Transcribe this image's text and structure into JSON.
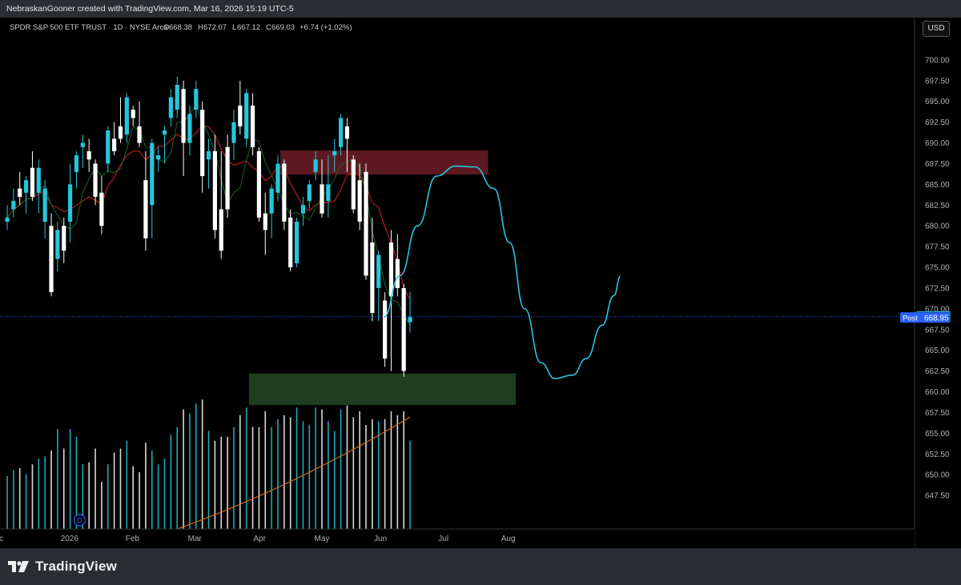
{
  "attribution": "NebraskanGooner created with TradingView.com, Mar 16, 2026 15:19 UTC-5",
  "brand": {
    "name": "TradingView"
  },
  "currency_button": "USD",
  "legend": {
    "symbol": "SPDR S&P 500 ETF TRUST · 1D · NYSE Arca",
    "open": "668.38",
    "high": "672.07",
    "low": "667.12",
    "close": "669.03",
    "change": "+6.74 (+1.02%)"
  },
  "price_label": {
    "last": "669.03",
    "post_tag": "Post",
    "post_value": "668.95"
  },
  "event_marker": "D",
  "colors": {
    "up": "#26c6da",
    "down": "#ffffff",
    "background": "#000000",
    "resistance_zone": "#5c1a20",
    "support_zone": "#1e3d21",
    "projection": "#29c5e6",
    "volume_ma": "#d2691e",
    "price_line": "#2962ff",
    "ma_red": "#b71c1c",
    "ma_green": "#1b5e20"
  },
  "chart_data": {
    "type": "candlestick",
    "symbol": "SPY",
    "interval": "1D",
    "ylim": [
      645.25,
      702.25
    ],
    "y_ticks": [
      "700.00",
      "697.50",
      "695.00",
      "692.50",
      "690.00",
      "687.50",
      "685.00",
      "682.50",
      "680.00",
      "677.50",
      "675.00",
      "672.50",
      "670.00",
      "667.50",
      "665.00",
      "662.50",
      "660.00",
      "657.50",
      "655.00",
      "652.50",
      "650.00",
      "647.50"
    ],
    "x_tick_labels": [
      {
        "label": "ec",
        "bar": -1.3
      },
      {
        "label": "2026",
        "bar": 9.9
      },
      {
        "label": "Feb",
        "bar": 19.9
      },
      {
        "label": "Mar",
        "bar": 29.8
      },
      {
        "label": "Apr",
        "bar": 40.1
      },
      {
        "label": "May",
        "bar": 50.0
      },
      {
        "label": "Jun",
        "bar": 59.3
      },
      {
        "label": "Jul",
        "bar": 69.3
      },
      {
        "label": "Aug",
        "bar": 79.6
      }
    ],
    "bar_spacing_note": "one bar per trading day",
    "candles": [
      {
        "o": 680.5,
        "h": 682.5,
        "l": 679.5,
        "c": 681.0
      },
      {
        "o": 682.0,
        "h": 684.5,
        "l": 681.0,
        "c": 683.0
      },
      {
        "o": 684.5,
        "h": 686.5,
        "l": 682.5,
        "c": 683.5
      },
      {
        "o": 684.0,
        "h": 686.0,
        "l": 681.5,
        "c": 685.5
      },
      {
        "o": 687.0,
        "h": 689.0,
        "l": 683.0,
        "c": 683.5
      },
      {
        "o": 684.0,
        "h": 688.0,
        "l": 681.5,
        "c": 687.0
      },
      {
        "o": 680.5,
        "h": 685.5,
        "l": 678.5,
        "c": 684.5
      },
      {
        "o": 680.0,
        "h": 681.5,
        "l": 671.5,
        "c": 672.0
      },
      {
        "o": 676.0,
        "h": 680.5,
        "l": 674.5,
        "c": 679.5
      },
      {
        "o": 680.0,
        "h": 681.0,
        "l": 675.5,
        "c": 677.0
      },
      {
        "o": 680.5,
        "h": 687.5,
        "l": 678.0,
        "c": 685.0
      },
      {
        "o": 686.5,
        "h": 689.0,
        "l": 684.5,
        "c": 688.5
      },
      {
        "o": 689.5,
        "h": 691.0,
        "l": 687.0,
        "c": 690.0
      },
      {
        "o": 689.0,
        "h": 690.5,
        "l": 686.5,
        "c": 688.0
      },
      {
        "o": 687.5,
        "h": 688.0,
        "l": 682.5,
        "c": 683.5
      },
      {
        "o": 684.0,
        "h": 686.0,
        "l": 679.0,
        "c": 680.0
      },
      {
        "o": 687.5,
        "h": 692.0,
        "l": 686.5,
        "c": 691.5
      },
      {
        "o": 690.5,
        "h": 692.5,
        "l": 688.5,
        "c": 689.0
      },
      {
        "o": 692.0,
        "h": 695.5,
        "l": 690.0,
        "c": 690.5
      },
      {
        "o": 691.0,
        "h": 696.0,
        "l": 690.0,
        "c": 695.5
      },
      {
        "o": 694.0,
        "h": 694.5,
        "l": 692.0,
        "c": 693.0
      },
      {
        "o": 692.0,
        "h": 695.0,
        "l": 689.5,
        "c": 690.0
      },
      {
        "o": 685.5,
        "h": 689.0,
        "l": 677.0,
        "c": 678.5
      },
      {
        "o": 682.5,
        "h": 690.5,
        "l": 678.5,
        "c": 690.0
      },
      {
        "o": 688.0,
        "h": 689.5,
        "l": 686.5,
        "c": 688.5
      },
      {
        "o": 691.0,
        "h": 692.0,
        "l": 687.5,
        "c": 691.5
      },
      {
        "o": 693.0,
        "h": 696.5,
        "l": 692.0,
        "c": 695.5
      },
      {
        "o": 694.0,
        "h": 698.0,
        "l": 693.0,
        "c": 697.0
      },
      {
        "o": 696.5,
        "h": 697.5,
        "l": 686.0,
        "c": 690.0
      },
      {
        "o": 690.0,
        "h": 694.5,
        "l": 688.5,
        "c": 693.5
      },
      {
        "o": 694.0,
        "h": 697.5,
        "l": 693.0,
        "c": 696.5
      },
      {
        "o": 694.0,
        "h": 695.0,
        "l": 684.0,
        "c": 686.0
      },
      {
        "o": 688.0,
        "h": 690.5,
        "l": 684.5,
        "c": 689.0
      },
      {
        "o": 689.0,
        "h": 691.0,
        "l": 678.5,
        "c": 679.5
      },
      {
        "o": 682.0,
        "h": 689.0,
        "l": 676.0,
        "c": 677.0
      },
      {
        "o": 689.5,
        "h": 691.0,
        "l": 681.0,
        "c": 682.0
      },
      {
        "o": 690.0,
        "h": 694.0,
        "l": 688.0,
        "c": 692.5
      },
      {
        "o": 694.5,
        "h": 697.5,
        "l": 691.0,
        "c": 692.0
      },
      {
        "o": 690.5,
        "h": 696.5,
        "l": 689.5,
        "c": 696.0
      },
      {
        "o": 694.5,
        "h": 696.0,
        "l": 688.5,
        "c": 689.5
      },
      {
        "o": 689.0,
        "h": 689.5,
        "l": 680.5,
        "c": 681.0
      },
      {
        "o": 681.5,
        "h": 684.0,
        "l": 676.5,
        "c": 679.5
      },
      {
        "o": 681.5,
        "h": 685.0,
        "l": 678.5,
        "c": 684.5
      },
      {
        "o": 684.0,
        "h": 688.5,
        "l": 683.0,
        "c": 687.5
      },
      {
        "o": 687.5,
        "h": 688.0,
        "l": 679.5,
        "c": 680.5
      },
      {
        "o": 681.0,
        "h": 682.0,
        "l": 674.5,
        "c": 675.0
      },
      {
        "o": 675.5,
        "h": 681.0,
        "l": 675.0,
        "c": 680.5
      },
      {
        "o": 681.5,
        "h": 683.5,
        "l": 680.0,
        "c": 682.5
      },
      {
        "o": 683.0,
        "h": 685.5,
        "l": 682.0,
        "c": 685.0
      },
      {
        "o": 686.5,
        "h": 689.0,
        "l": 685.5,
        "c": 688.0
      },
      {
        "o": 685.0,
        "h": 688.0,
        "l": 681.0,
        "c": 681.5
      },
      {
        "o": 683.0,
        "h": 688.5,
        "l": 681.0,
        "c": 685.0
      },
      {
        "o": 688.5,
        "h": 690.5,
        "l": 686.5,
        "c": 689.0
      },
      {
        "o": 689.5,
        "h": 693.5,
        "l": 688.5,
        "c": 693.0
      },
      {
        "o": 692.0,
        "h": 693.0,
        "l": 686.5,
        "c": 690.5
      },
      {
        "o": 688.0,
        "h": 688.5,
        "l": 681.5,
        "c": 682.0
      },
      {
        "o": 685.5,
        "h": 687.5,
        "l": 679.5,
        "c": 680.5
      },
      {
        "o": 686.5,
        "h": 687.5,
        "l": 673.5,
        "c": 674.0
      },
      {
        "o": 678.0,
        "h": 681.0,
        "l": 668.5,
        "c": 669.5
      },
      {
        "o": 672.5,
        "h": 677.0,
        "l": 668.5,
        "c": 676.5
      },
      {
        "o": 671.0,
        "h": 672.0,
        "l": 663.0,
        "c": 664.0
      },
      {
        "o": 678.0,
        "h": 679.5,
        "l": 662.5,
        "c": 671.5
      },
      {
        "o": 676.0,
        "h": 679.0,
        "l": 671.5,
        "c": 672.5
      },
      {
        "o": 672.5,
        "h": 673.0,
        "l": 661.8,
        "c": 662.5
      },
      {
        "o": 668.38,
        "h": 672.07,
        "l": 667.12,
        "c": 669.03
      }
    ],
    "volume": [
      0.27,
      0.3,
      0.31,
      0.28,
      0.33,
      0.36,
      0.37,
      0.4,
      0.51,
      0.41,
      0.51,
      0.47,
      0.33,
      0.34,
      0.41,
      0.24,
      0.33,
      0.39,
      0.41,
      0.45,
      0.32,
      0.29,
      0.44,
      0.4,
      0.33,
      0.36,
      0.48,
      0.52,
      0.61,
      0.59,
      0.64,
      0.66,
      0.5,
      0.45,
      0.47,
      0.47,
      0.52,
      0.58,
      0.62,
      0.52,
      0.52,
      0.6,
      0.52,
      0.56,
      0.58,
      0.57,
      0.62,
      0.55,
      0.53,
      0.62,
      0.61,
      0.55,
      0.5,
      0.61,
      0.63,
      0.57,
      0.6,
      0.53,
      0.56,
      0.55,
      0.56,
      0.6,
      0.58,
      0.6,
      0.45
    ],
    "zones": [
      {
        "name": "resistance",
        "y0": 686.2,
        "y1": 689.1,
        "bar0": 43.4,
        "bar1": 76.4
      },
      {
        "name": "support",
        "y0": 658.4,
        "y1": 662.2,
        "bar0": 38.4,
        "bar1": 80.8
      }
    ],
    "projection_path": [
      [
        59.8,
        669.0
      ],
      [
        62.4,
        674.0
      ],
      [
        65.2,
        680.0
      ],
      [
        68.2,
        686.0
      ],
      [
        71.3,
        687.2
      ],
      [
        74.3,
        687.1
      ],
      [
        77.3,
        684.5
      ],
      [
        79.8,
        678.0
      ],
      [
        82.2,
        670.0
      ],
      [
        84.8,
        663.5
      ],
      [
        87.0,
        661.6
      ],
      [
        89.8,
        662.0
      ],
      [
        92.0,
        664.0
      ],
      [
        94.5,
        668.0
      ],
      [
        96.4,
        671.6
      ],
      [
        97.4,
        673.9
      ]
    ]
  }
}
